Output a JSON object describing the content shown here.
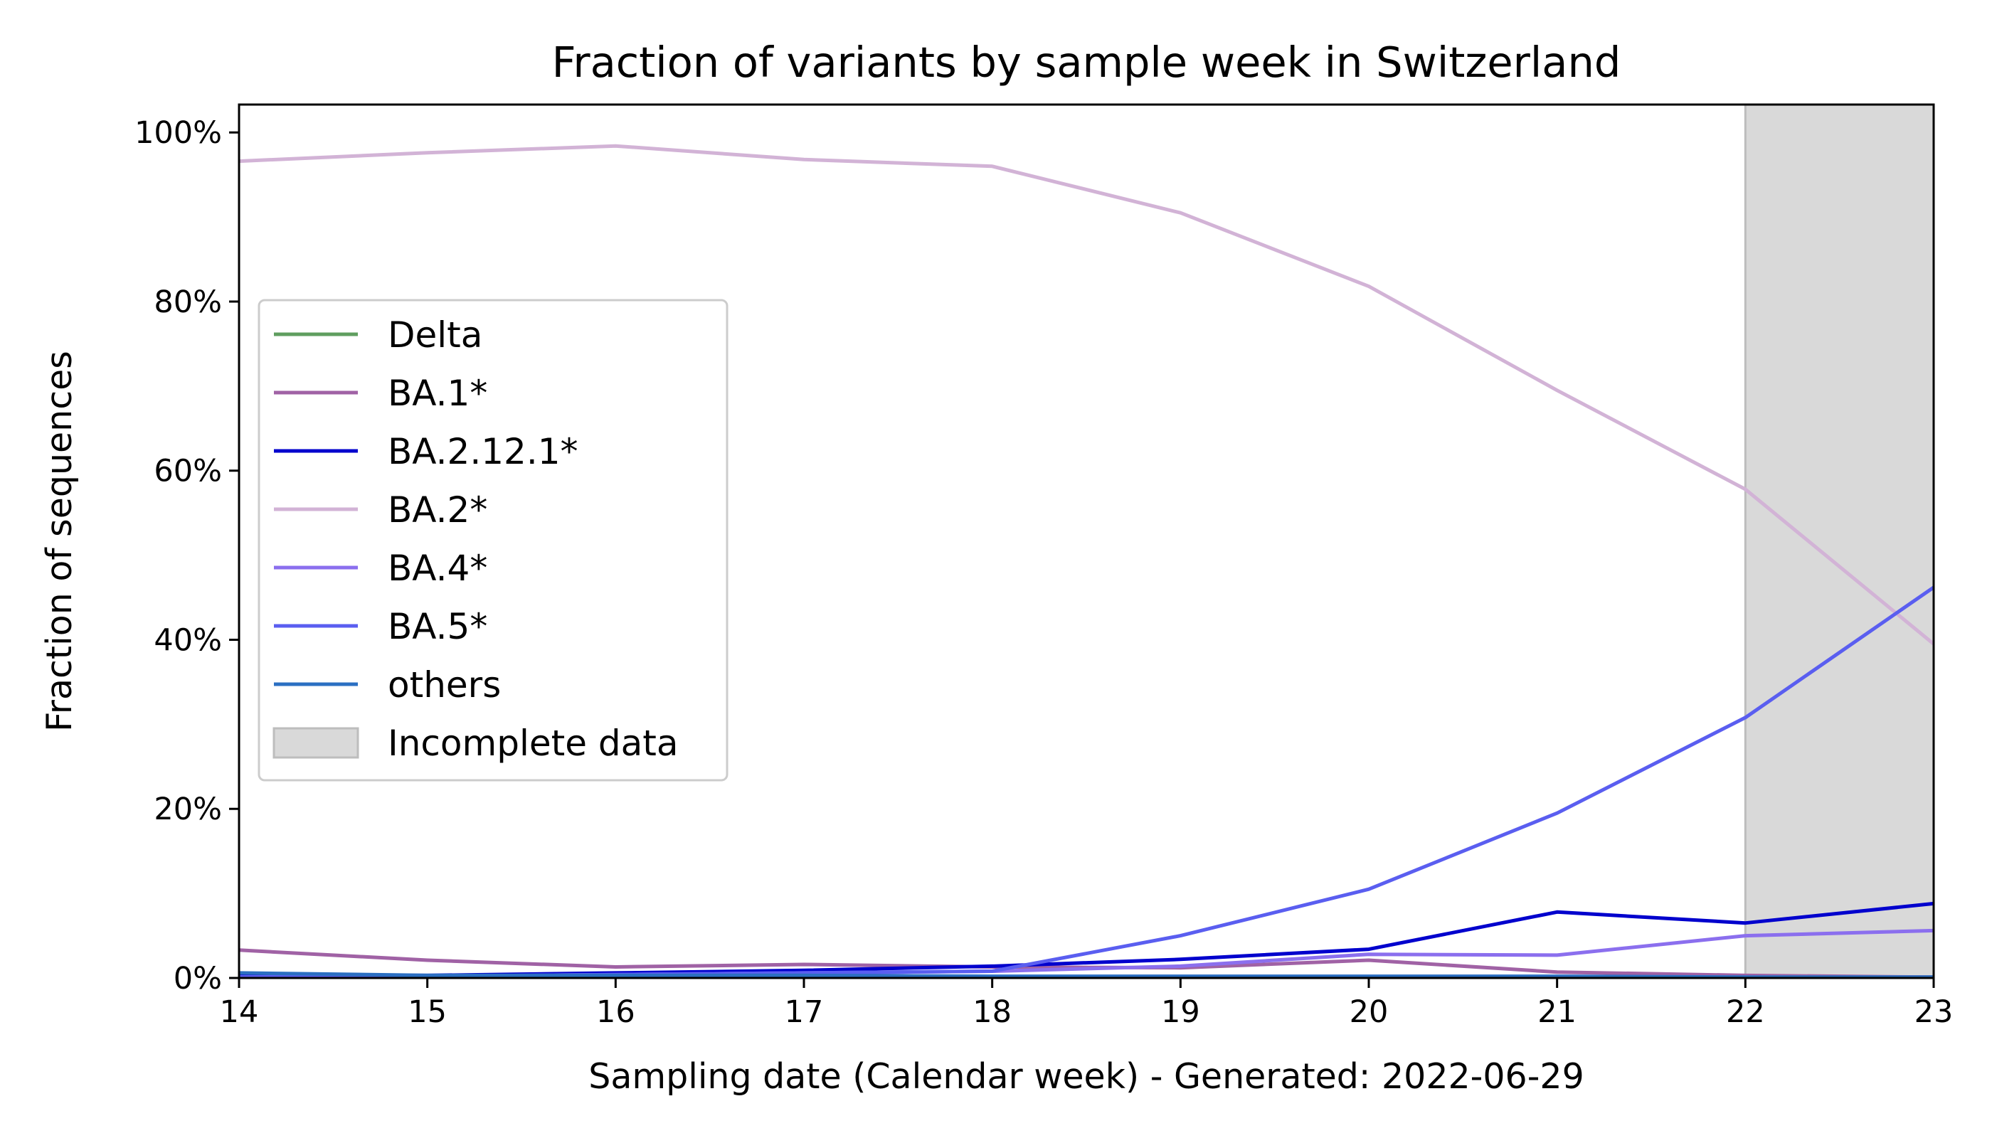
{
  "chart_data": {
    "type": "line",
    "title": "Fraction of variants by sample week in Switzerland",
    "xlabel": "Sampling date (Calendar week) - Generated: 2022-06-29",
    "ylabel": "Fraction of sequences",
    "x": [
      14,
      15,
      16,
      17,
      18,
      19,
      20,
      21,
      22,
      23
    ],
    "xlim": [
      14,
      23
    ],
    "ylim": [
      0,
      1.033
    ],
    "x_ticks": [
      {
        "value": 14,
        "label": "14"
      },
      {
        "value": 15,
        "label": "15"
      },
      {
        "value": 16,
        "label": "16"
      },
      {
        "value": 17,
        "label": "17"
      },
      {
        "value": 18,
        "label": "18"
      },
      {
        "value": 19,
        "label": "19"
      },
      {
        "value": 20,
        "label": "20"
      },
      {
        "value": 21,
        "label": "21"
      },
      {
        "value": 22,
        "label": "22"
      },
      {
        "value": 23,
        "label": "23"
      }
    ],
    "y_ticks": [
      {
        "value": 0,
        "label": "0%"
      },
      {
        "value": 0.2,
        "label": "20%"
      },
      {
        "value": 0.4,
        "label": "40%"
      },
      {
        "value": 0.6,
        "label": "60%"
      },
      {
        "value": 0.8,
        "label": "80%"
      },
      {
        "value": 1.0,
        "label": "100%"
      }
    ],
    "grid": false,
    "legend_position": "center-left",
    "series": [
      {
        "name": "Delta",
        "color": "#5f9e5f",
        "values": [
          0.001,
          0.001,
          0.001,
          0.001,
          0.001,
          0.001,
          0.001,
          0.001,
          0.001,
          0.001
        ]
      },
      {
        "name": "BA.1*",
        "color": "#a062a5",
        "values": [
          0.033,
          0.021,
          0.013,
          0.016,
          0.013,
          0.012,
          0.021,
          0.007,
          0.003,
          0.001
        ]
      },
      {
        "name": "BA.2.12.1*",
        "color": "#0000cd",
        "values": [
          0.003,
          0.003,
          0.006,
          0.009,
          0.014,
          0.022,
          0.034,
          0.078,
          0.065,
          0.088
        ]
      },
      {
        "name": "BA.2*",
        "color": "#d2b3d6",
        "values": [
          0.966,
          0.976,
          0.984,
          0.968,
          0.96,
          0.905,
          0.818,
          0.695,
          0.578,
          0.395
        ]
      },
      {
        "name": "BA.4*",
        "color": "#8b6fee",
        "values": [
          0.001,
          0.002,
          0.004,
          0.006,
          0.008,
          0.014,
          0.028,
          0.027,
          0.05,
          0.056
        ]
      },
      {
        "name": "BA.5*",
        "color": "#5a5ef0",
        "values": [
          0.001,
          0.002,
          0.004,
          0.006,
          0.008,
          0.05,
          0.105,
          0.195,
          0.308,
          0.462
        ]
      },
      {
        "name": "others",
        "color": "#2b6fc2",
        "values": [
          0.006,
          0.003,
          0.003,
          0.003,
          0.002,
          0.002,
          0.002,
          0.002,
          0.001,
          0.001
        ]
      }
    ],
    "shaded_region": {
      "name": "Incomplete data",
      "x_start": 22,
      "x_end": 23,
      "color": "#d9d9d9"
    }
  }
}
